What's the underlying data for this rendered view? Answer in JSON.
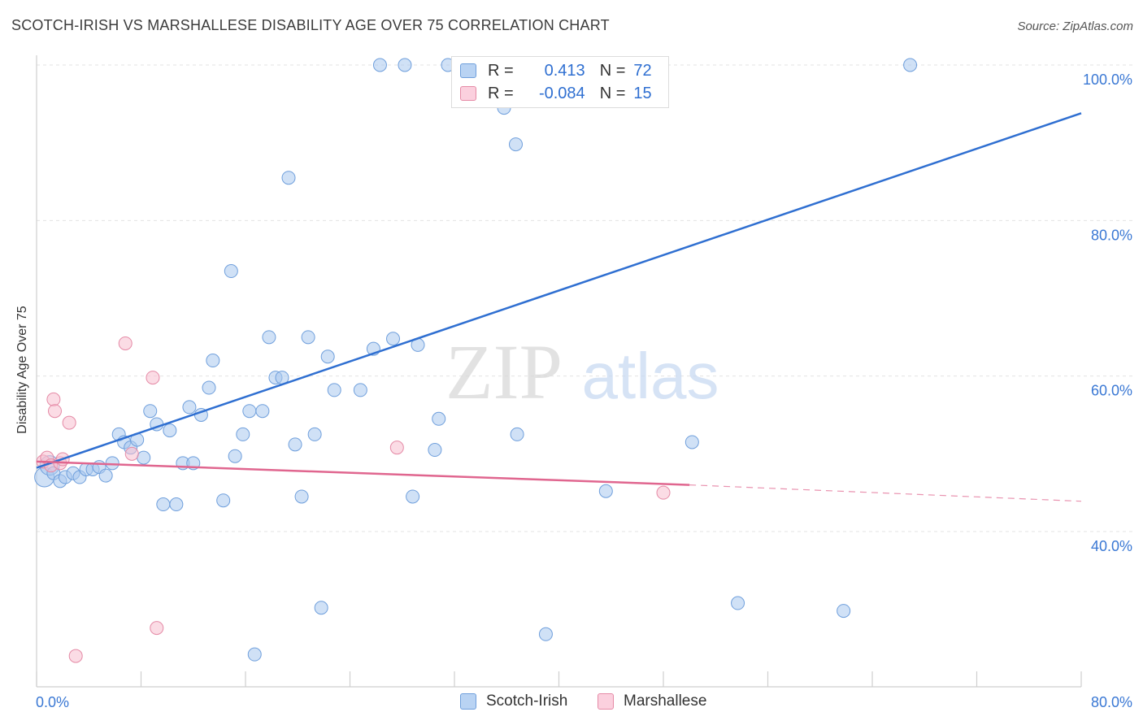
{
  "title": "SCOTCH-IRISH VS MARSHALLESE DISABILITY AGE OVER 75 CORRELATION CHART",
  "source": "Source: ZipAtlas.com",
  "watermark": {
    "zip": "ZIP",
    "atlas": "atlas"
  },
  "colors": {
    "blue_fill": "#a9c8ef",
    "blue_stroke": "#6f9fdc",
    "blue_line": "#2f6fd1",
    "pink_fill": "#f7bfd0",
    "pink_stroke": "#e58aa6",
    "pink_line": "#e0668f",
    "axis_label": "#3a78d4"
  },
  "legend": {
    "rows": [
      {
        "r_label": "R =",
        "r_value": "0.413",
        "n_label": "N =",
        "n_value": "72"
      },
      {
        "r_label": "R =",
        "r_value": "-0.084",
        "n_label": "N =",
        "n_value": "15"
      }
    ]
  },
  "chart_data": {
    "type": "scatter",
    "title": "SCOTCH-IRISH VS MARSHALLESE DISABILITY AGE OVER 75 CORRELATION CHART",
    "xlabel": "",
    "ylabel": "Disability Age Over 75",
    "xlim": [
      0,
      80
    ],
    "ylim": [
      22,
      102
    ],
    "x_tick_labels": [
      "0.0%",
      "80.0%"
    ],
    "y_ticks": [
      40,
      60,
      80,
      100
    ],
    "y_tick_labels": [
      "40.0%",
      "60.0%",
      "80.0%",
      "100.0%"
    ],
    "grid": true,
    "legend_position": "top-center",
    "series": [
      {
        "name": "Scotch-Irish",
        "color": "#a9c8ef",
        "points": [
          [
            0.6,
            47.0
          ],
          [
            1.0,
            48.5
          ],
          [
            1.3,
            47.5
          ],
          [
            1.8,
            46.5
          ],
          [
            2.2,
            47.0
          ],
          [
            2.8,
            47.5
          ],
          [
            3.3,
            47.0
          ],
          [
            3.8,
            48.0
          ],
          [
            4.3,
            48.0
          ],
          [
            4.8,
            48.3
          ],
          [
            5.3,
            47.2
          ],
          [
            5.8,
            48.8
          ],
          [
            6.3,
            52.5
          ],
          [
            6.7,
            51.5
          ],
          [
            7.2,
            50.8
          ],
          [
            7.7,
            51.8
          ],
          [
            8.2,
            49.5
          ],
          [
            8.7,
            55.5
          ],
          [
            9.2,
            53.8
          ],
          [
            9.7,
            43.5
          ],
          [
            10.2,
            53.0
          ],
          [
            10.7,
            43.5
          ],
          [
            11.2,
            48.8
          ],
          [
            12.0,
            48.8
          ],
          [
            11.7,
            56.0
          ],
          [
            12.6,
            55.0
          ],
          [
            13.2,
            58.5
          ],
          [
            13.5,
            62.0
          ],
          [
            14.3,
            44.0
          ],
          [
            14.9,
            73.5
          ],
          [
            15.2,
            49.7
          ],
          [
            15.8,
            52.5
          ],
          [
            16.3,
            55.5
          ],
          [
            16.7,
            24.2
          ],
          [
            17.3,
            55.5
          ],
          [
            17.8,
            65.0
          ],
          [
            18.3,
            59.8
          ],
          [
            18.8,
            59.8
          ],
          [
            19.3,
            85.5
          ],
          [
            19.8,
            51.2
          ],
          [
            20.3,
            44.5
          ],
          [
            20.8,
            65.0
          ],
          [
            21.3,
            52.5
          ],
          [
            21.8,
            30.2
          ],
          [
            22.3,
            62.5
          ],
          [
            22.8,
            58.2
          ],
          [
            24.8,
            58.2
          ],
          [
            25.8,
            63.5
          ],
          [
            26.3,
            100.0
          ],
          [
            27.3,
            64.8
          ],
          [
            28.2,
            100.0
          ],
          [
            28.8,
            44.5
          ],
          [
            29.2,
            64.0
          ],
          [
            30.5,
            50.5
          ],
          [
            30.8,
            54.5
          ],
          [
            31.5,
            100.0
          ],
          [
            34.5,
            100.0
          ],
          [
            34.8,
            100.0
          ],
          [
            35.8,
            94.5
          ],
          [
            36.7,
            89.8
          ],
          [
            36.8,
            52.5
          ],
          [
            37.8,
            100.0
          ],
          [
            39.0,
            26.8
          ],
          [
            41.2,
            100.0
          ],
          [
            43.3,
            100.0
          ],
          [
            43.6,
            45.2
          ],
          [
            50.2,
            51.5
          ],
          [
            53.7,
            30.8
          ],
          [
            61.8,
            29.8
          ],
          [
            66.9,
            100.0
          ],
          [
            40.8,
            100.0
          ],
          [
            34.8,
            98.5
          ]
        ]
      },
      {
        "name": "Marshallese",
        "color": "#f7bfd0",
        "points": [
          [
            0.5,
            49.0
          ],
          [
            0.8,
            49.5
          ],
          [
            1.1,
            48.5
          ],
          [
            1.3,
            57.0
          ],
          [
            1.4,
            55.5
          ],
          [
            1.8,
            48.8
          ],
          [
            2.0,
            49.3
          ],
          [
            2.5,
            54.0
          ],
          [
            3.0,
            24.0
          ],
          [
            6.8,
            64.2
          ],
          [
            7.3,
            50.0
          ],
          [
            8.9,
            59.8
          ],
          [
            9.2,
            27.6
          ],
          [
            27.6,
            50.8
          ],
          [
            48.0,
            45.0
          ]
        ]
      }
    ],
    "trend_lines": [
      {
        "series": "Scotch-Irish",
        "x": [
          0.0,
          80.0
        ],
        "y": [
          48.2,
          93.8
        ]
      },
      {
        "series": "Marshallese",
        "x": [
          0.0,
          50.0
        ],
        "y": [
          49.0,
          46.0
        ]
      },
      {
        "series": "Marshallese",
        "style": "dashed",
        "x": [
          50.0,
          80.0
        ],
        "y": [
          46.0,
          43.9
        ]
      }
    ]
  },
  "bottom_legend": [
    {
      "label": "Scotch-Irish"
    },
    {
      "label": "Marshallese"
    }
  ]
}
